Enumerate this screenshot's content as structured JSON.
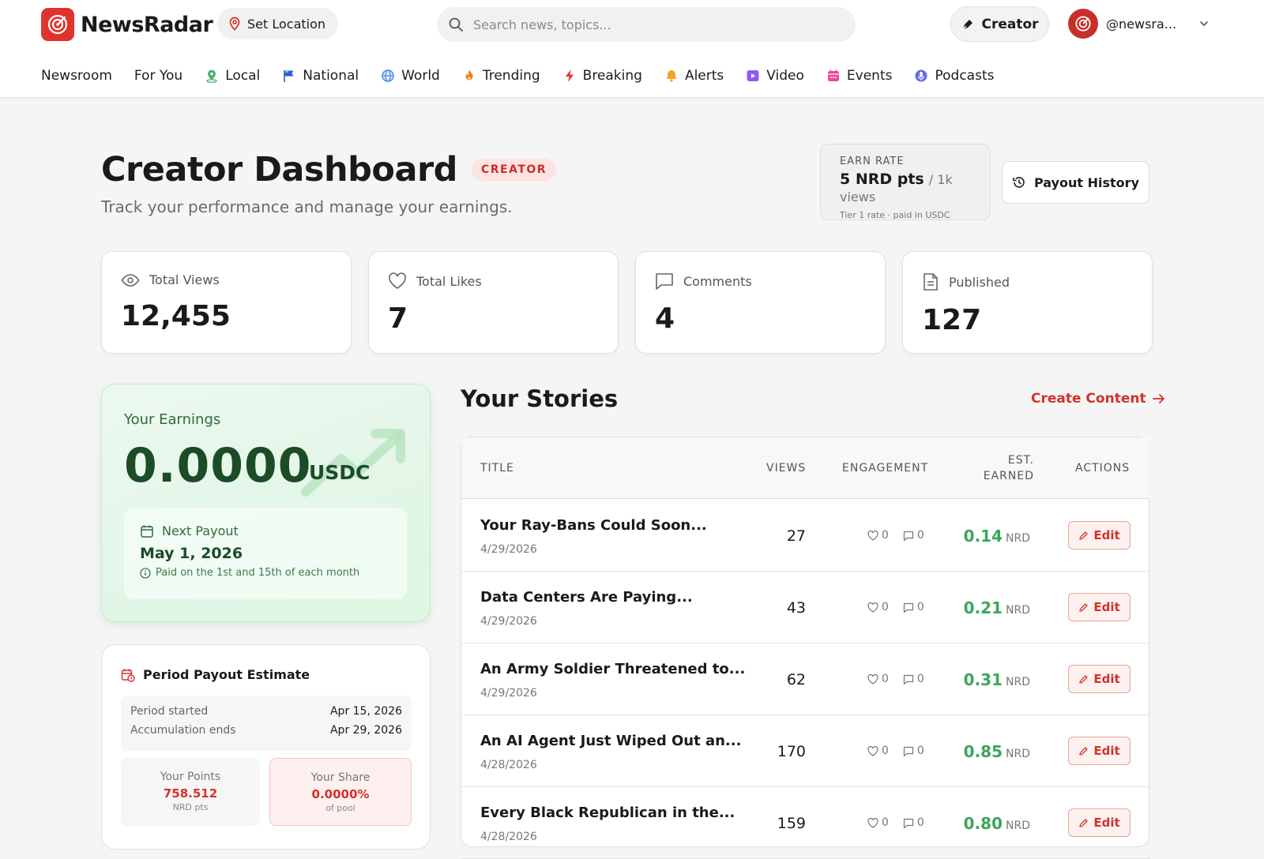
{
  "brand": {
    "name": "NewsRadar"
  },
  "header": {
    "set_location": "Set Location",
    "search_placeholder": "Search news, topics...",
    "creator_button": "Creator",
    "username": "@newsra..."
  },
  "nav": [
    {
      "label": "Newsroom",
      "icon": "none"
    },
    {
      "label": "For You",
      "icon": "none"
    },
    {
      "label": "Local",
      "icon": "location-pin-icon"
    },
    {
      "label": "National",
      "icon": "flag-icon"
    },
    {
      "label": "World",
      "icon": "globe-icon"
    },
    {
      "label": "Trending",
      "icon": "flame-icon"
    },
    {
      "label": "Breaking",
      "icon": "bolt-icon"
    },
    {
      "label": "Alerts",
      "icon": "bell-icon"
    },
    {
      "label": "Video",
      "icon": "play-icon"
    },
    {
      "label": "Events",
      "icon": "calendar-icon"
    },
    {
      "label": "Podcasts",
      "icon": "microphone-icon"
    }
  ],
  "page": {
    "title": "Creator Dashboard",
    "badge": "CREATOR",
    "subtitle": "Track your performance and manage your earnings."
  },
  "earn_rate": {
    "label": "EARN RATE",
    "value": "5 NRD pts",
    "per": "/ 1k views",
    "note": "Tier 1 rate · paid in USDC"
  },
  "payout_history_button": "Payout History",
  "stats": [
    {
      "label": "Total Views",
      "value": "12,455",
      "icon": "eye-icon"
    },
    {
      "label": "Total Likes",
      "value": "7",
      "icon": "heart-icon"
    },
    {
      "label": "Comments",
      "value": "4",
      "icon": "comment-icon"
    },
    {
      "label": "Published",
      "value": "127",
      "icon": "document-icon"
    }
  ],
  "earnings": {
    "title": "Your Earnings",
    "amount": "0.0000",
    "currency": "USDC",
    "next_payout_label": "Next Payout",
    "next_payout_date": "May 1, 2026",
    "next_payout_note": "Paid on the 1st and 15th of each month"
  },
  "period_estimate": {
    "title": "Period Payout Estimate",
    "period_started_label": "Period started",
    "period_started": "Apr 15, 2026",
    "accumulation_ends_label": "Accumulation ends",
    "accumulation_ends": "Apr 29, 2026",
    "points_label": "Your Points",
    "points": "758.512",
    "points_unit": "NRD pts",
    "share_label": "Your Share",
    "share": "0.0000%",
    "share_unit": "of pool"
  },
  "stories": {
    "title": "Your Stories",
    "create_link": "Create Content",
    "columns": {
      "title": "TITLE",
      "views": "VIEWS",
      "engagement": "ENGAGEMENT",
      "earned_1": "EST.",
      "earned_2": "EARNED",
      "actions": "ACTIONS"
    },
    "edit_label": "Edit",
    "earn_unit": "NRD",
    "rows": [
      {
        "title": "Your Ray-Bans Could Soon...",
        "date": "4/29/2026",
        "views": "27",
        "likes": "0",
        "comments": "0",
        "earned": "0.14"
      },
      {
        "title": "Data Centers Are Paying...",
        "date": "4/29/2026",
        "views": "43",
        "likes": "0",
        "comments": "0",
        "earned": "0.21"
      },
      {
        "title": "An Army Soldier Threatened to...",
        "date": "4/29/2026",
        "views": "62",
        "likes": "0",
        "comments": "0",
        "earned": "0.31"
      },
      {
        "title": "An AI Agent Just Wiped Out an...",
        "date": "4/28/2026",
        "views": "170",
        "likes": "0",
        "comments": "0",
        "earned": "0.85"
      },
      {
        "title": "Every Black Republican in the...",
        "date": "4/28/2026",
        "views": "159",
        "likes": "0",
        "comments": "0",
        "earned": "0.80"
      }
    ]
  },
  "colors": {
    "brand_red": "#e0332c",
    "earn_green": "#3aa65a",
    "earnings_bg": "#e3f6e8"
  }
}
